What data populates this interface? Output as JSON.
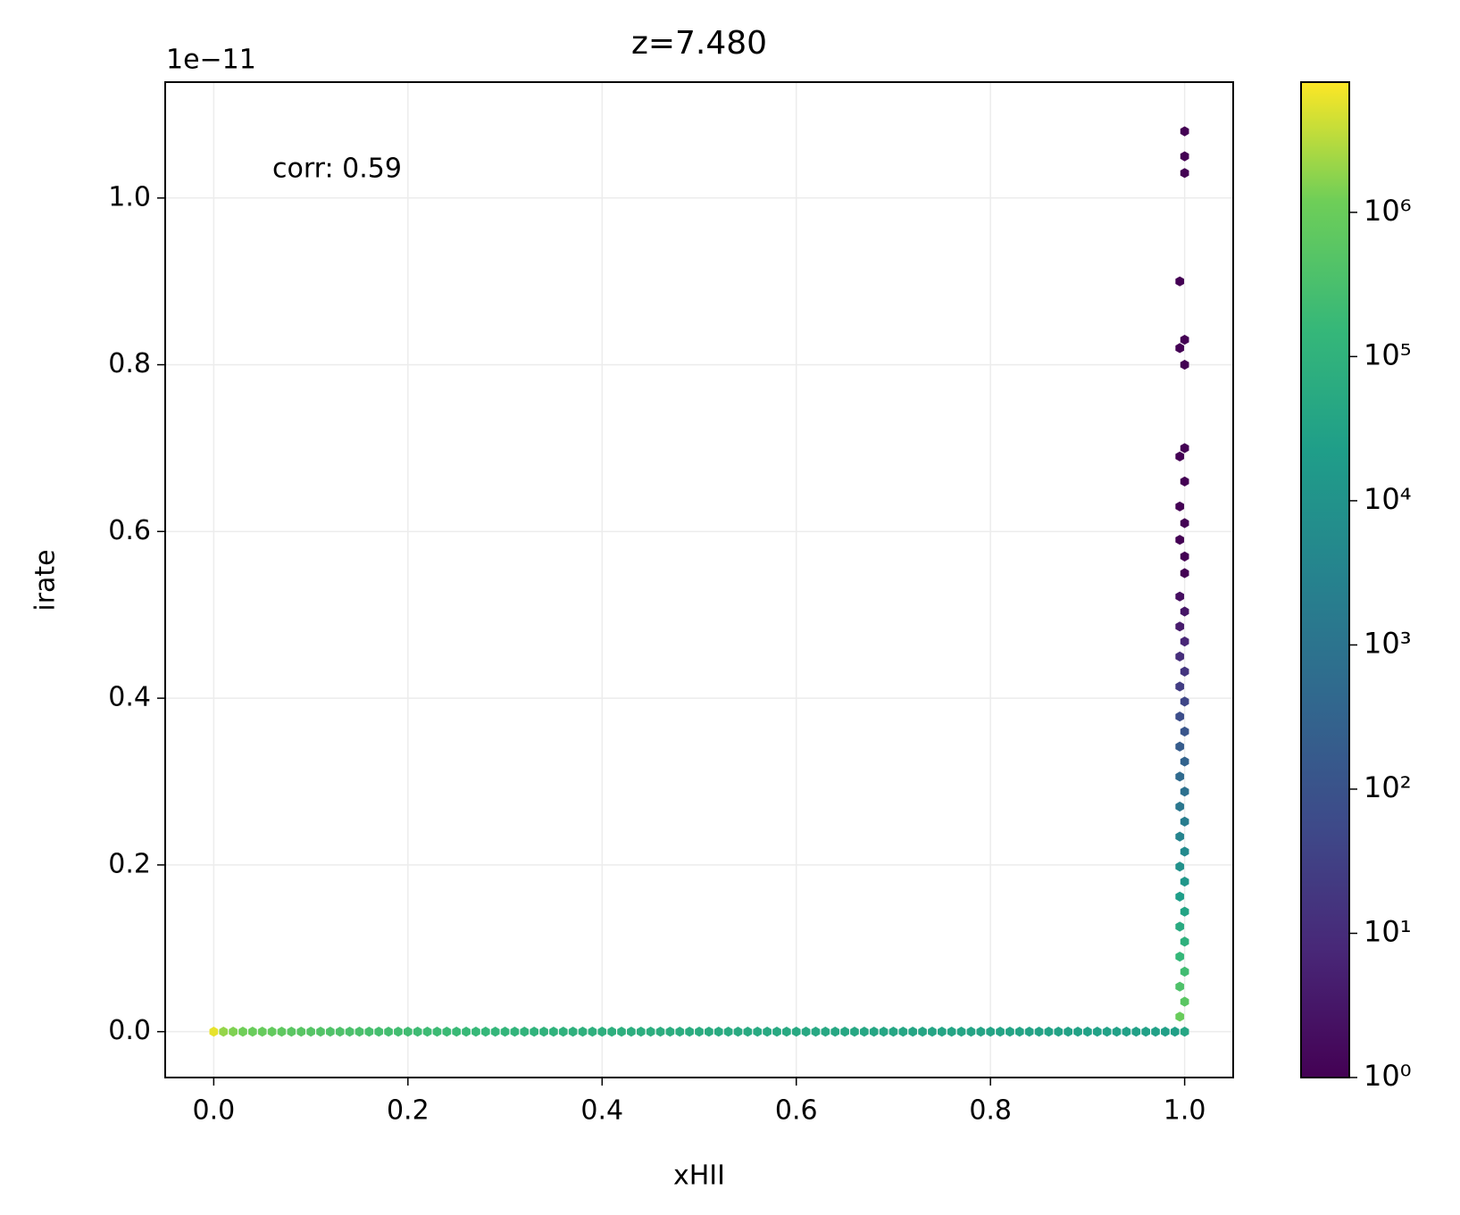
{
  "chart_data": {
    "type": "hexbin",
    "title": "z=7.480",
    "x_label": "xHII",
    "y_label": "irate",
    "y_offset_label": "1e−11",
    "annotation": "corr: 0.59",
    "colormap": "viridis",
    "color_scale": "log",
    "grid": true,
    "xlim": [
      -0.05,
      1.05
    ],
    "ylim": [
      -0.055,
      1.139
    ],
    "xticks": [
      {
        "value": 0,
        "label": "0.0"
      },
      {
        "value": 0.2,
        "label": "0.2"
      },
      {
        "value": 0.4,
        "label": "0.4"
      },
      {
        "value": 0.6,
        "label": "0.6"
      },
      {
        "value": 0.8,
        "label": "0.8"
      },
      {
        "value": 1,
        "label": "1.0"
      }
    ],
    "yticks": [
      {
        "value": 0,
        "label": "0.0"
      },
      {
        "value": 0.2,
        "label": "0.2"
      },
      {
        "value": 0.4,
        "label": "0.4"
      },
      {
        "value": 0.6,
        "label": "0.6"
      },
      {
        "value": 0.8,
        "label": "0.8"
      },
      {
        "value": 1,
        "label": "1.0"
      }
    ],
    "clim": [
      1,
      8000000
    ],
    "cticks": [
      {
        "value": 1,
        "label": "10⁰"
      },
      {
        "value": 10,
        "label": "10¹"
      },
      {
        "value": 100,
        "label": "10²"
      },
      {
        "value": 1000,
        "label": "10³"
      },
      {
        "value": 10000,
        "label": "10⁴"
      },
      {
        "value": 100000,
        "label": "10⁵"
      },
      {
        "value": 1000000,
        "label": "10⁶"
      }
    ],
    "x": [
      0,
      0.01,
      0.02,
      0.03,
      0.04,
      0.05,
      0.06,
      0.07,
      0.08,
      0.09,
      0.1,
      0.11,
      0.12,
      0.13,
      0.14,
      0.15,
      0.16,
      0.17,
      0.18,
      0.19,
      0.2,
      0.21,
      0.22,
      0.23,
      0.24,
      0.25,
      0.26,
      0.27,
      0.28,
      0.29,
      0.3,
      0.31,
      0.32,
      0.33,
      0.34,
      0.35,
      0.36,
      0.37,
      0.38,
      0.39,
      0.4,
      0.41,
      0.42,
      0.43,
      0.44,
      0.45,
      0.46,
      0.47,
      0.48,
      0.49,
      0.5,
      0.51,
      0.52,
      0.53,
      0.54,
      0.55,
      0.56,
      0.57,
      0.58,
      0.59,
      0.6,
      0.61,
      0.62,
      0.63,
      0.64,
      0.65,
      0.66,
      0.67,
      0.68,
      0.69,
      0.7,
      0.71,
      0.72,
      0.73,
      0.74,
      0.75,
      0.76,
      0.77,
      0.78,
      0.79,
      0.8,
      0.81,
      0.82,
      0.83,
      0.84,
      0.85,
      0.86,
      0.87,
      0.88,
      0.89,
      0.9,
      0.91,
      0.92,
      0.93,
      0.94,
      0.95,
      0.96,
      0.97,
      0.98,
      0.99,
      1,
      0.995,
      1,
      0.995,
      1,
      0.995,
      1,
      0.995,
      1,
      0.995,
      1,
      0.995,
      1,
      0.995,
      1,
      0.995,
      1,
      0.995,
      1,
      0.995,
      1,
      0.995,
      1,
      0.995,
      1,
      0.995,
      1,
      0.995,
      1,
      0.995,
      1,
      1,
      0.995,
      1,
      0.995,
      1,
      0.995,
      1,
      1,
      0.995,
      1,
      0.995,
      1,
      1,
      1
    ],
    "y": [
      0,
      0,
      0,
      0,
      0,
      0,
      0,
      0,
      0,
      0,
      0,
      0,
      0,
      0,
      0,
      0,
      0,
      0,
      0,
      0,
      0,
      0,
      0,
      0,
      0,
      0,
      0,
      0,
      0,
      0,
      0,
      0,
      0,
      0,
      0,
      0,
      0,
      0,
      0,
      0,
      0,
      0,
      0,
      0,
      0,
      0,
      0,
      0,
      0,
      0,
      0,
      0,
      0,
      0,
      0,
      0,
      0,
      0,
      0,
      0,
      0,
      0,
      0,
      0,
      0,
      0,
      0,
      0,
      0,
      0,
      0,
      0,
      0,
      0,
      0,
      0,
      0,
      0,
      0,
      0,
      0,
      0,
      0,
      0,
      0,
      0,
      0,
      0,
      0,
      0,
      0,
      0,
      0,
      0,
      0,
      0,
      0,
      0,
      0,
      0,
      0,
      0.018,
      0.036,
      0.054,
      0.072,
      0.09,
      0.108,
      0.126,
      0.144,
      0.162,
      0.18,
      0.198,
      0.216,
      0.234,
      0.252,
      0.27,
      0.288,
      0.306,
      0.324,
      0.342,
      0.36,
      0.378,
      0.396,
      0.414,
      0.432,
      0.45,
      0.468,
      0.486,
      0.504,
      0.522,
      0.55,
      0.57,
      0.59,
      0.61,
      0.63,
      0.66,
      0.69,
      0.7,
      0.8,
      0.82,
      0.83,
      0.9,
      1.03,
      1.05,
      1.08
    ],
    "counts": [
      6000000,
      2000000,
      1500000,
      1200000,
      1000000,
      900000,
      800000,
      700000,
      600000,
      550000,
      500000,
      450000,
      400000,
      380000,
      350000,
      330000,
      300000,
      280000,
      260000,
      250000,
      240000,
      220000,
      210000,
      200000,
      190000,
      180000,
      170000,
      160000,
      150000,
      140000,
      130000,
      120000,
      115000,
      110000,
      105000,
      100000,
      95000,
      90000,
      88000,
      86000,
      84000,
      82000,
      80000,
      78000,
      76000,
      74000,
      72000,
      70000,
      68000,
      66000,
      64000,
      62000,
      60000,
      58000,
      56000,
      55000,
      54000,
      53000,
      52000,
      51000,
      50000,
      49000,
      48000,
      47000,
      46000,
      45000,
      44000,
      43000,
      42000,
      41000,
      40000,
      40000,
      39000,
      39000,
      38000,
      38000,
      37000,
      37000,
      36000,
      36000,
      35000,
      35000,
      34000,
      34000,
      33000,
      33000,
      32000,
      32000,
      31000,
      31000,
      30000,
      30000,
      30000,
      29000,
      29000,
      28000,
      28000,
      28000,
      27000,
      27000,
      40000,
      1000000,
      600000,
      380000,
      240000,
      150000,
      90000,
      56000,
      35000,
      22000,
      13000,
      8300,
      5200,
      3200,
      2000,
      1250,
      780,
      480,
      300,
      190,
      115,
      71,
      44,
      27,
      17,
      11,
      7,
      4,
      3,
      2,
      1,
      1,
      1,
      1,
      1,
      1,
      1,
      1,
      1,
      1,
      1,
      1,
      1,
      1,
      1
    ]
  }
}
